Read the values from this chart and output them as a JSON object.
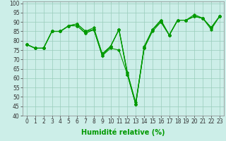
{
  "title": "",
  "xlabel": "Humidité relative (%)",
  "ylabel": "",
  "background_color": "#cceee8",
  "grid_color": "#99ccbb",
  "line_color": "#009900",
  "xlim": [
    -0.5,
    23.5
  ],
  "ylim": [
    40,
    101
  ],
  "xticks": [
    0,
    1,
    2,
    3,
    4,
    5,
    6,
    7,
    8,
    9,
    10,
    11,
    12,
    13,
    14,
    15,
    16,
    17,
    18,
    19,
    20,
    21,
    22,
    23
  ],
  "yticks": [
    40,
    45,
    50,
    55,
    60,
    65,
    70,
    75,
    80,
    85,
    90,
    95,
    100
  ],
  "series": [
    [
      78,
      76,
      76,
      85,
      85,
      88,
      88,
      84,
      86,
      72,
      76,
      75,
      62,
      46,
      76,
      85,
      90,
      83,
      91,
      91,
      94,
      92,
      87,
      93
    ],
    [
      78,
      76,
      76,
      85,
      85,
      88,
      89,
      85,
      86,
      73,
      77,
      86,
      63,
      46,
      77,
      86,
      91,
      83,
      91,
      91,
      93,
      92,
      86,
      93
    ],
    [
      78,
      76,
      76,
      85,
      85,
      88,
      88,
      84,
      86,
      72,
      77,
      86,
      62,
      46,
      76,
      86,
      90,
      83,
      91,
      91,
      93,
      92,
      87,
      93
    ],
    [
      78,
      76,
      76,
      85,
      85,
      88,
      89,
      85,
      87,
      73,
      77,
      86,
      63,
      47,
      76,
      86,
      91,
      83,
      91,
      91,
      93,
      92,
      87,
      93
    ]
  ],
  "marker": "D",
  "markersize": 1.8,
  "linewidth": 0.8,
  "xlabel_fontsize": 7,
  "tick_fontsize": 5.5
}
